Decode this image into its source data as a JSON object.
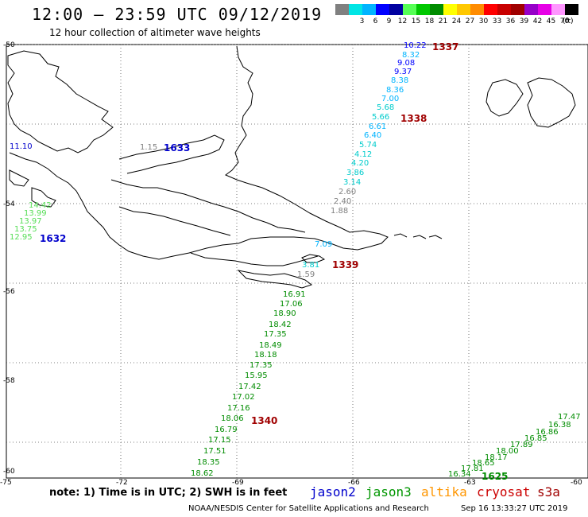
{
  "title": "12:00 – 23:59 UTC 09/12/2019",
  "subtitle": "12 hour collection of altimeter wave heights",
  "color_scale": {
    "colors": [
      "#808080",
      "#00e5e5",
      "#00b4ff",
      "#0000ff",
      "#0000a0",
      "#55ff55",
      "#00c800",
      "#008c00",
      "#ffff00",
      "#ffc800",
      "#ff8c00",
      "#ff0000",
      "#c80000",
      "#a00000",
      "#9600c8",
      "#e600e6",
      "#ff96ff",
      "#000000"
    ],
    "labels": [
      "",
      "3",
      "6",
      "9",
      "12",
      "15",
      "18",
      "21",
      "24",
      "27",
      "30",
      "33",
      "36",
      "39",
      "42",
      "45",
      "70"
    ],
    "unit": "(ft)"
  },
  "axes": {
    "lat_labels": [
      "-50",
      "-54",
      "-56",
      "-58",
      "-60"
    ],
    "lon_labels": [
      "-75",
      "-72",
      "-69",
      "-66",
      "-63",
      "-60"
    ]
  },
  "satellites": [
    {
      "name": "jason2",
      "color": "#0000cc"
    },
    {
      "name": "jason3",
      "color": "#009600"
    },
    {
      "name": "altika",
      "color": "#ff9600"
    },
    {
      "name": "cryosat",
      "color": "#cc0000"
    },
    {
      "name": "s3a",
      "color": "#a00000"
    }
  ],
  "pass_labels": [
    {
      "text": "1337",
      "color": "#a00000"
    },
    {
      "text": "1338",
      "color": "#a00000"
    },
    {
      "text": "1339",
      "color": "#a00000"
    },
    {
      "text": "1340",
      "color": "#a00000"
    },
    {
      "text": "1633",
      "color": "#0000cc"
    },
    {
      "text": "1632",
      "color": "#0000cc"
    },
    {
      "text": "1625",
      "color": "#008c00"
    }
  ],
  "wave_heights": [
    {
      "text": "10.22",
      "color": "#0000ff"
    },
    {
      "text": "8.32",
      "color": "#00b4ff"
    },
    {
      "text": "9.08",
      "color": "#0000ff"
    },
    {
      "text": "9.37",
      "color": "#0000ff"
    },
    {
      "text": "8.38",
      "color": "#00b4ff"
    },
    {
      "text": "8.36",
      "color": "#00b4ff"
    },
    {
      "text": "7.00",
      "color": "#00b4ff"
    },
    {
      "text": "5.68",
      "color": "#00cccc"
    },
    {
      "text": "5.66",
      "color": "#00cccc"
    },
    {
      "text": "6.61",
      "color": "#00b4ff"
    },
    {
      "text": "6.40",
      "color": "#00b4ff"
    },
    {
      "text": "5.74",
      "color": "#00cccc"
    },
    {
      "text": "4.12",
      "color": "#00cccc"
    },
    {
      "text": "4.20",
      "color": "#00cccc"
    },
    {
      "text": "3.86",
      "color": "#00cccc"
    },
    {
      "text": "3.14",
      "color": "#00cccc"
    },
    {
      "text": "2.60",
      "color": "#808080"
    },
    {
      "text": "2.40",
      "color": "#808080"
    },
    {
      "text": "1.88",
      "color": "#808080"
    },
    {
      "text": "7.09",
      "color": "#00b4ff"
    },
    {
      "text": "3.81",
      "color": "#00cccc"
    },
    {
      "text": "1.59",
      "color": "#808080"
    },
    {
      "text": "16.91",
      "color": "#008c00"
    },
    {
      "text": "17.06",
      "color": "#008c00"
    },
    {
      "text": "18.90",
      "color": "#008c00"
    },
    {
      "text": "18.42",
      "color": "#008c00"
    },
    {
      "text": "17.35",
      "color": "#008c00"
    },
    {
      "text": "18.49",
      "color": "#008c00"
    },
    {
      "text": "18.18",
      "color": "#008c00"
    },
    {
      "text": "17.35",
      "color": "#008c00"
    },
    {
      "text": "15.95",
      "color": "#008c00"
    },
    {
      "text": "17.42",
      "color": "#008c00"
    },
    {
      "text": "17.02",
      "color": "#008c00"
    },
    {
      "text": "17.16",
      "color": "#008c00"
    },
    {
      "text": "18.06",
      "color": "#008c00"
    },
    {
      "text": "16.79",
      "color": "#008c00"
    },
    {
      "text": "17.15",
      "color": "#008c00"
    },
    {
      "text": "17.51",
      "color": "#008c00"
    },
    {
      "text": "18.35",
      "color": "#008c00"
    },
    {
      "text": "18.62",
      "color": "#008c00"
    },
    {
      "text": "17.47",
      "color": "#008c00"
    },
    {
      "text": "16.38",
      "color": "#008c00"
    },
    {
      "text": "16.86",
      "color": "#008c00"
    },
    {
      "text": "16.85",
      "color": "#008c00"
    },
    {
      "text": "17.89",
      "color": "#008c00"
    },
    {
      "text": "18.00",
      "color": "#008c00"
    },
    {
      "text": "18.17",
      "color": "#008c00"
    },
    {
      "text": "18.65",
      "color": "#008c00"
    },
    {
      "text": "17.81",
      "color": "#008c00"
    },
    {
      "text": "16.34",
      "color": "#008c00"
    },
    {
      "text": "11.10",
      "color": "#0000cc"
    },
    {
      "text": "1.15",
      "color": "#808080"
    },
    {
      "text": "12.95",
      "color": "#55dd55"
    },
    {
      "text": "13.75",
      "color": "#55dd55"
    },
    {
      "text": "13.97",
      "color": "#55dd55"
    },
    {
      "text": "13.99",
      "color": "#55dd55"
    },
    {
      "text": "14.42",
      "color": "#55dd55"
    }
  ],
  "note": "note: 1) Time is in UTC; 2) SWH is in feet",
  "credit": "NOAA/NESDIS Center for Satellite Applications and Research",
  "timestamp": "Sep 16 13:33:27 UTC 2019"
}
